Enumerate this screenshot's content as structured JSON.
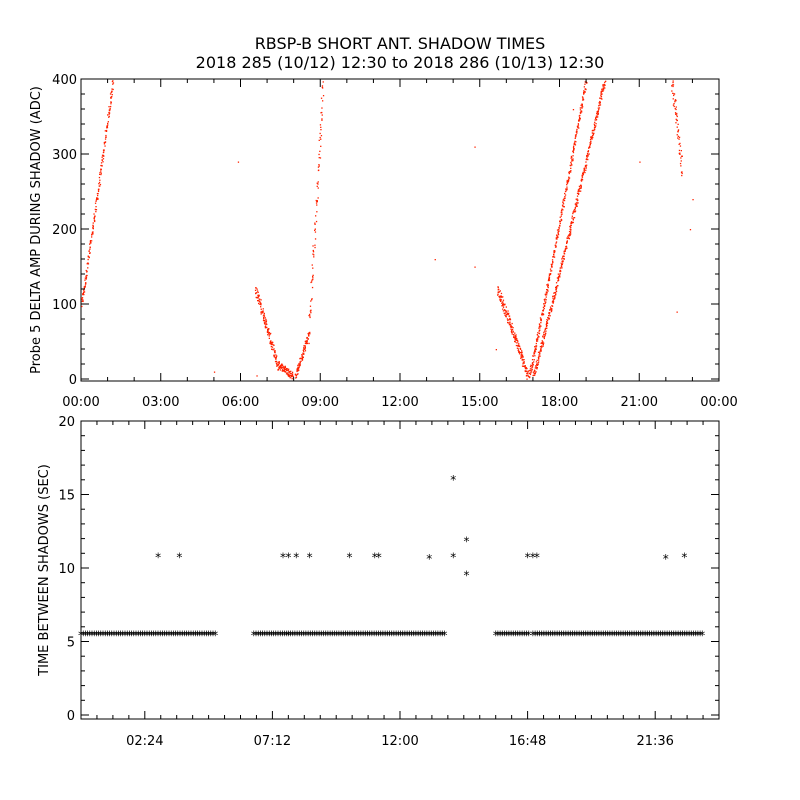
{
  "figure": {
    "title_line1": "RBSP-B SHORT ANT. SHADOW TIMES",
    "title_line2": "2018 285 (10/12) 12:30 to 2018 286 (10/13) 12:30"
  },
  "colors": {
    "top_points": "#ff2200",
    "bottom_points": "#000000",
    "axes": "#000000"
  },
  "chart_data": [
    {
      "type": "scatter",
      "ylabel": "Probe 5 DELTA AMP DURING SHADOW (ADC)",
      "xlim": [
        0,
        24
      ],
      "ylim": [
        0,
        400
      ],
      "x_unit": "hours",
      "x_tick_values": [
        0,
        3,
        6,
        9,
        12,
        15,
        18,
        21,
        24
      ],
      "x_tick_labels": [
        "00:00",
        "03:00",
        "06:00",
        "09:00",
        "12:00",
        "15:00",
        "18:00",
        "21:00",
        "00:00"
      ],
      "y_tick_values": [
        0,
        100,
        200,
        300,
        400
      ],
      "y_tick_labels": [
        "0",
        "100",
        "200",
        "300",
        "400"
      ],
      "grid": false,
      "segments": [
        {
          "x0": 0.0,
          "x1": 1.2,
          "y0": 100,
          "y1": 400,
          "spread": 12
        },
        {
          "x0": 6.55,
          "x1": 7.4,
          "y0": 120,
          "y1": 15,
          "spread": 14
        },
        {
          "x0": 7.4,
          "x1": 7.95,
          "y0": 20,
          "y1": 5,
          "spread": 10
        },
        {
          "x0": 8.05,
          "x1": 8.55,
          "y0": 5,
          "y1": 60,
          "spread": 10
        },
        {
          "x0": 8.55,
          "x1": 9.1,
          "y0": 60,
          "y1": 400,
          "spread": 35
        },
        {
          "x0": 15.65,
          "x1": 16.8,
          "y0": 120,
          "y1": 5,
          "spread": 14
        },
        {
          "x0": 16.85,
          "x1": 19.0,
          "y0": 5,
          "y1": 400,
          "spread": 10
        },
        {
          "x0": 17.0,
          "x1": 19.7,
          "y0": 5,
          "y1": 400,
          "spread": 10
        },
        {
          "x0": 22.2,
          "x1": 22.6,
          "y0": 400,
          "y1": 280,
          "spread": 30
        }
      ],
      "isolated_points": [
        [
          5.0,
          10
        ],
        [
          5.9,
          290
        ],
        [
          6.6,
          5
        ],
        [
          13.3,
          160
        ],
        [
          14.8,
          150
        ],
        [
          14.8,
          310
        ],
        [
          15.6,
          40
        ],
        [
          18.5,
          360
        ],
        [
          21.0,
          290
        ],
        [
          22.4,
          90
        ],
        [
          22.9,
          200
        ],
        [
          23.0,
          240
        ]
      ]
    },
    {
      "type": "scatter",
      "ylabel": "TIME BETWEEN SHADOWS (SEC)",
      "xlim": [
        0,
        24
      ],
      "ylim": [
        0,
        20
      ],
      "x_unit": "hours",
      "x_tick_values": [
        2.4,
        7.2,
        12.0,
        16.8,
        21.6
      ],
      "x_tick_labels": [
        "02:24",
        "07:12",
        "12:00",
        "16:48",
        "21:36"
      ],
      "y_tick_values": [
        0,
        5,
        10,
        15,
        20
      ],
      "y_tick_labels": [
        "0",
        "5",
        "10",
        "15",
        "20"
      ],
      "grid": false,
      "marker": "*",
      "baseline_value": 5.4,
      "baseline_ranges": [
        [
          0.0,
          5.1
        ],
        [
          6.5,
          7.8
        ],
        [
          7.8,
          13.7
        ],
        [
          15.6,
          16.85
        ],
        [
          17.0,
          23.4
        ]
      ],
      "outliers": [
        [
          2.9,
          10.7
        ],
        [
          3.7,
          10.7
        ],
        [
          7.6,
          10.7
        ],
        [
          7.8,
          10.7
        ],
        [
          8.1,
          10.7
        ],
        [
          8.6,
          10.7
        ],
        [
          10.1,
          10.7
        ],
        [
          11.05,
          10.7
        ],
        [
          11.2,
          10.7
        ],
        [
          13.1,
          10.6
        ],
        [
          14.0,
          16.0
        ],
        [
          14.0,
          10.7
        ],
        [
          14.5,
          11.8
        ],
        [
          14.5,
          9.5
        ],
        [
          16.8,
          10.7
        ],
        [
          17.0,
          10.7
        ],
        [
          17.15,
          10.7
        ],
        [
          22.0,
          10.6
        ],
        [
          22.7,
          10.7
        ]
      ]
    }
  ]
}
